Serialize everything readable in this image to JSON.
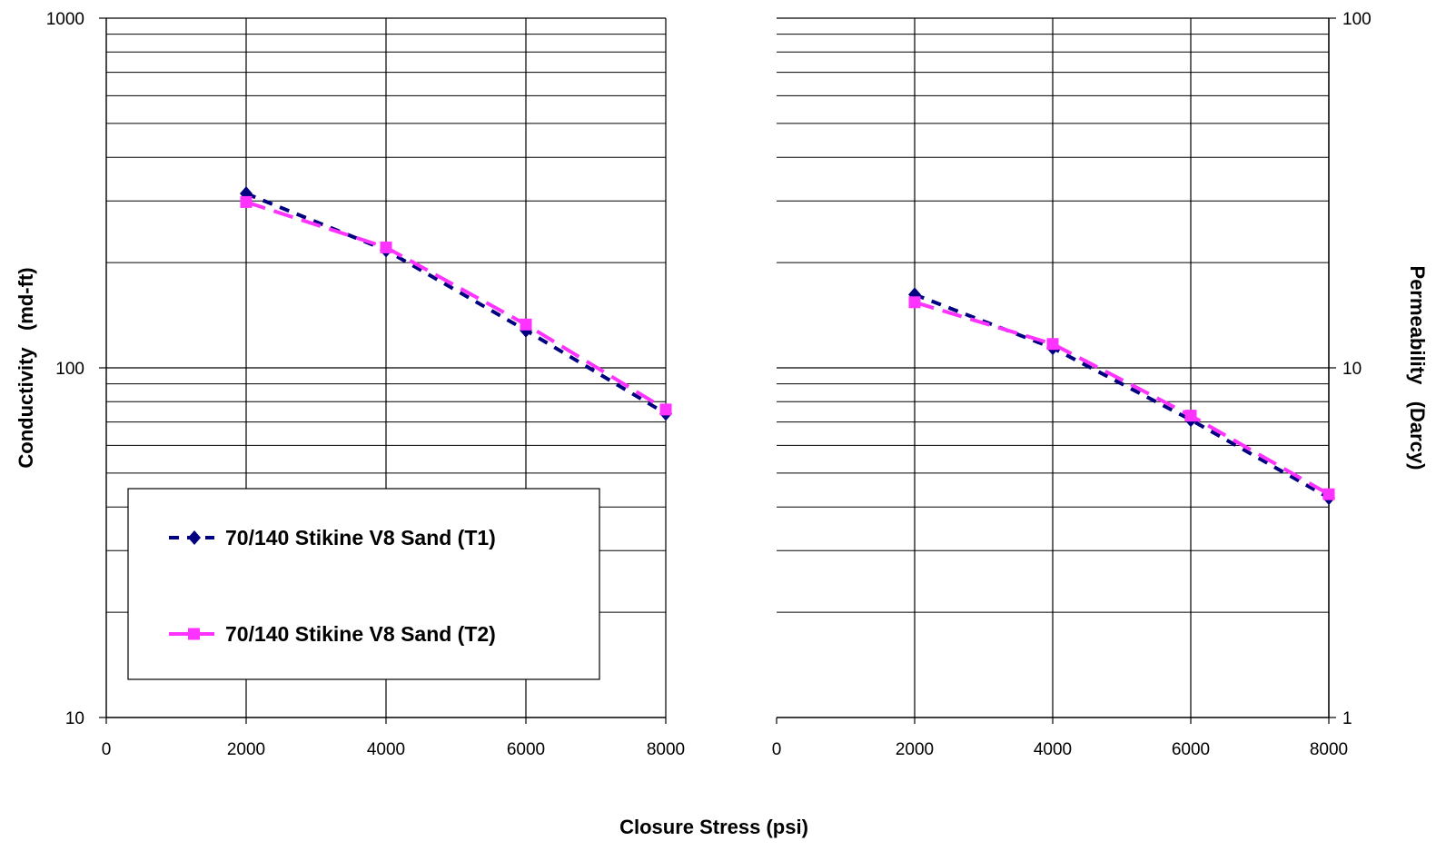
{
  "xlabel": "Closure Stress (psi)",
  "chart_data": [
    {
      "type": "line",
      "scale": "log",
      "ylabel": "Conductivity   (md-ft)",
      "xlim": [
        0,
        8000
      ],
      "ylim": [
        10,
        1000
      ],
      "x_ticks": [
        "0",
        "2000",
        "4000",
        "6000",
        "8000"
      ],
      "y_ticks": [
        "10",
        "100",
        "1000"
      ],
      "grid": true,
      "legend": "lower-left",
      "series": [
        {
          "name": "70/140 Stikine V8 Sand (T1)",
          "color": "#000080",
          "marker": "diamond",
          "line": "dashed",
          "x": [
            2000,
            4000,
            6000,
            8000
          ],
          "y": [
            315,
            217,
            128,
            74
          ]
        },
        {
          "name": "70/140 Stikine V8 Sand (T2)",
          "color": "#ff33ff",
          "marker": "square",
          "line": "dashed",
          "x": [
            2000,
            4000,
            6000,
            8000
          ],
          "y": [
            298,
            221,
            133,
            76
          ]
        }
      ]
    },
    {
      "type": "line",
      "scale": "log",
      "ylabel": "Permeability   (Darcy)",
      "xlim": [
        0,
        8000
      ],
      "ylim": [
        1,
        100
      ],
      "x_ticks": [
        "0",
        "2000",
        "4000",
        "6000",
        "8000"
      ],
      "y_ticks": [
        "1",
        "10",
        "100"
      ],
      "grid": true,
      "series": [
        {
          "name": "70/140 Stikine V8 Sand (T1)",
          "color": "#000080",
          "marker": "diamond",
          "line": "dashed",
          "x": [
            2000,
            4000,
            6000,
            8000
          ],
          "y": [
            16.2,
            11.4,
            7.1,
            4.25
          ]
        },
        {
          "name": "70/140 Stikine V8 Sand (T2)",
          "color": "#ff33ff",
          "marker": "square",
          "line": "dashed",
          "x": [
            2000,
            4000,
            6000,
            8000
          ],
          "y": [
            15.4,
            11.7,
            7.3,
            4.35
          ]
        }
      ]
    }
  ]
}
